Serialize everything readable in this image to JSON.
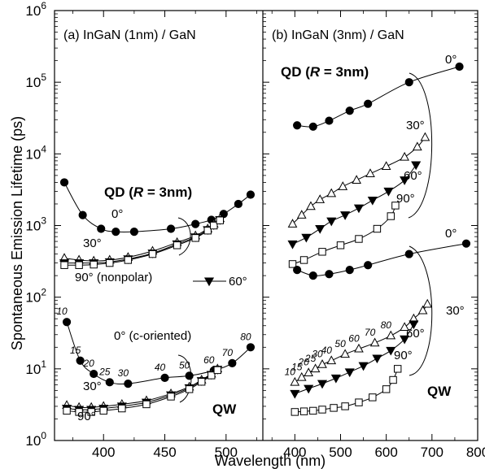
{
  "chart_data": {
    "type": "scatter",
    "ylabel": "Spontaneous Emission Lifetime (ps)",
    "xlabel": "Wavelength (nm)",
    "yscale": "log",
    "ylim": [
      1,
      1000000
    ],
    "ytick_labels": [
      {
        "base": "10",
        "exp": "0"
      },
      {
        "base": "10",
        "exp": "1"
      },
      {
        "base": "10",
        "exp": "2"
      },
      {
        "base": "10",
        "exp": "3"
      },
      {
        "base": "10",
        "exp": "4"
      },
      {
        "base": "10",
        "exp": "5"
      },
      {
        "base": "10",
        "exp": "6"
      }
    ],
    "panels": [
      {
        "id": "a",
        "title": "(a) InGaN (1nm) / GaN",
        "xlim": [
          360,
          530
        ],
        "xticks": [
          400,
          450,
          500
        ],
        "xtick_labels": [
          "400",
          "450",
          "500"
        ],
        "group_labels": {
          "qd_prefix": "QD (",
          "qd_r": "R",
          "qd_suffix": " = 3nm)",
          "qw": "QW"
        },
        "series": [
          {
            "group": "QD",
            "angle": "0°",
            "marker": "filled-circle",
            "x": [
              368,
              383,
              398,
              410,
              425,
              455,
              475,
              488,
              498,
              510,
              520
            ],
            "y": [
              4000,
              1400,
              900,
              820,
              820,
              900,
              1050,
              1200,
              1450,
              2000,
              2700
            ]
          },
          {
            "group": "QD",
            "angle": "30°",
            "marker": "open-triangle",
            "x": [
              368,
              380,
              392,
              405,
              420,
              440,
              460,
              475,
              485,
              490,
              495
            ],
            "y": [
              350,
              330,
              320,
              330,
              360,
              440,
              580,
              720,
              900,
              1050,
              1250
            ]
          },
          {
            "group": "QD",
            "angle": "60°",
            "marker": "filled-triangle-down",
            "x": [
              368,
              380,
              392,
              405,
              420,
              440,
              460,
              475,
              485,
              490,
              495
            ],
            "y": [
              300,
              300,
              300,
              310,
              340,
              410,
              550,
              690,
              870,
              1020,
              1200
            ]
          },
          {
            "group": "QD",
            "angle": "90°",
            "marker": "open-square",
            "x": [
              368,
              380,
              392,
              405,
              420,
              440,
              460,
              475,
              485,
              490,
              495
            ],
            "y": [
              280,
              280,
              285,
              300,
              330,
              400,
              530,
              670,
              850,
              1000,
              1180
            ]
          },
          {
            "group": "QW",
            "angle": "0°",
            "marker": "filled-circle",
            "wavelength_labels": [
              "10",
              "15",
              "20",
              "25",
              "30",
              "40",
              "50",
              "60",
              "70",
              "80"
            ],
            "x": [
              370,
              381,
              392,
              405,
              420,
              450,
              470,
              490,
              505,
              520
            ],
            "y": [
              45,
              13,
              8.5,
              6.5,
              6.2,
              7.5,
              8,
              9.5,
              12,
              20
            ]
          },
          {
            "group": "QW",
            "angle": "30°",
            "marker": "open-triangle",
            "x": [
              370,
              380,
              390,
              400,
              415,
              435,
              455,
              470,
              480,
              488,
              493
            ],
            "y": [
              3.1,
              2.9,
              2.9,
              3.0,
              3.2,
              3.6,
              4.5,
              5.6,
              7.0,
              8.5,
              10
            ]
          },
          {
            "group": "QW",
            "angle": "60°",
            "marker": "filled-triangle-down",
            "x": [
              370,
              380,
              390,
              400,
              415,
              435,
              455,
              470,
              480,
              488,
              493
            ],
            "y": [
              2.8,
              2.7,
              2.7,
              2.8,
              3.0,
              3.4,
              4.3,
              5.4,
              6.8,
              8.3,
              9.8
            ]
          },
          {
            "group": "QW",
            "angle": "90°",
            "marker": "open-square",
            "x": [
              370,
              380,
              390,
              400,
              415,
              435,
              455,
              470,
              480,
              488,
              493
            ],
            "y": [
              2.6,
              2.5,
              2.5,
              2.6,
              2.8,
              3.2,
              4.1,
              5.2,
              6.6,
              8.1,
              9.6
            ]
          }
        ],
        "annotations": {
          "qd_0": "0°",
          "qd_30": "30°",
          "qd_90": "90° (nonpolar)",
          "legend_60": "60°",
          "qw_0": "0° (c-oriented)",
          "qw_30": "30°",
          "qw_90": "90°"
        }
      },
      {
        "id": "b",
        "title": "(b) InGaN (3nm) / GaN",
        "xlim": [
          330,
          800
        ],
        "xticks": [
          400,
          500,
          600,
          700,
          800
        ],
        "xtick_labels": [
          "400",
          "500",
          "600",
          "700",
          "800"
        ],
        "group_labels": {
          "qd_prefix": "QD (",
          "qd_r": "R",
          "qd_suffix": " = 3nm)",
          "qw": "QW"
        },
        "series": [
          {
            "group": "QD",
            "angle": "0°",
            "marker": "filled-circle",
            "x": [
              405,
              440,
              475,
              520,
              560,
              650,
              760
            ],
            "y": [
              25000,
              24000,
              29000,
              40000,
              50000,
              100000,
              165000
            ]
          },
          {
            "group": "QD",
            "angle": "30°",
            "marker": "open-triangle",
            "x": [
              395,
              415,
              435,
              455,
              480,
              505,
              535,
              565,
              600,
              640,
              668,
              685
            ],
            "y": [
              1050,
              1400,
              1850,
              2300,
              2800,
              3500,
              4300,
              5300,
              6700,
              9000,
              12500,
              17000
            ]
          },
          {
            "group": "QD",
            "angle": "60°",
            "marker": "filled-triangle-down",
            "x": [
              395,
              425,
              455,
              480,
              510,
              540,
              570,
              605,
              640,
              665
            ],
            "y": [
              550,
              680,
              900,
              1150,
              1400,
              1750,
              2250,
              3000,
              4300,
              7000
            ]
          },
          {
            "group": "QD",
            "angle": "90°",
            "marker": "open-square",
            "x": [
              395,
              420,
              460,
              500,
              540,
              580,
              610,
              620
            ],
            "y": [
              290,
              330,
              430,
              530,
              650,
              900,
              1350,
              1900
            ]
          },
          {
            "group": "QW",
            "angle": "0°",
            "marker": "filled-circle",
            "x": [
              405,
              440,
              475,
              520,
              560,
              650,
              775
            ],
            "y": [
              240,
              200,
              210,
              240,
              280,
              400,
              560
            ]
          },
          {
            "group": "QW",
            "angle": "30°",
            "marker": "open-triangle",
            "wavelength_labels": [
              "10",
              "15",
              "20",
              "25",
              "30",
              "40",
              "50",
              "60",
              "70",
              "80"
            ],
            "x": [
              400,
              415,
              430,
              445,
              460,
              480,
              510,
              540,
              575,
              610,
              640,
              660,
              680,
              690
            ],
            "y": [
              6.5,
              7.6,
              8.8,
              10,
              11.5,
              13,
              16,
              19,
              23,
              29,
              38,
              50,
              65,
              80
            ]
          },
          {
            "group": "QW",
            "angle": "60°",
            "marker": "filled-triangle-down",
            "x": [
              400,
              430,
              460,
              490,
              520,
              550,
              580,
              610,
              640,
              660
            ],
            "y": [
              4.5,
              5.3,
              6.2,
              7.4,
              9.0,
              11,
              14,
              18,
              26,
              42
            ]
          },
          {
            "group": "QW",
            "angle": "90°",
            "marker": "open-square",
            "x": [
              400,
              420,
              440,
              460,
              485,
              510,
              540,
              570,
              600,
              615,
              625
            ],
            "y": [
              2.5,
              2.55,
              2.6,
              2.7,
              2.85,
              3.0,
              3.4,
              4.0,
              5.2,
              7.0,
              10
            ]
          }
        ],
        "annotations": {
          "qd_0": "0°",
          "qd_30": "30°",
          "qd_60": "60°",
          "qd_90": "90°",
          "qw_0": "0°",
          "qw_30": "30°",
          "qw_60": "60°",
          "qw_90": "90°"
        }
      }
    ]
  }
}
